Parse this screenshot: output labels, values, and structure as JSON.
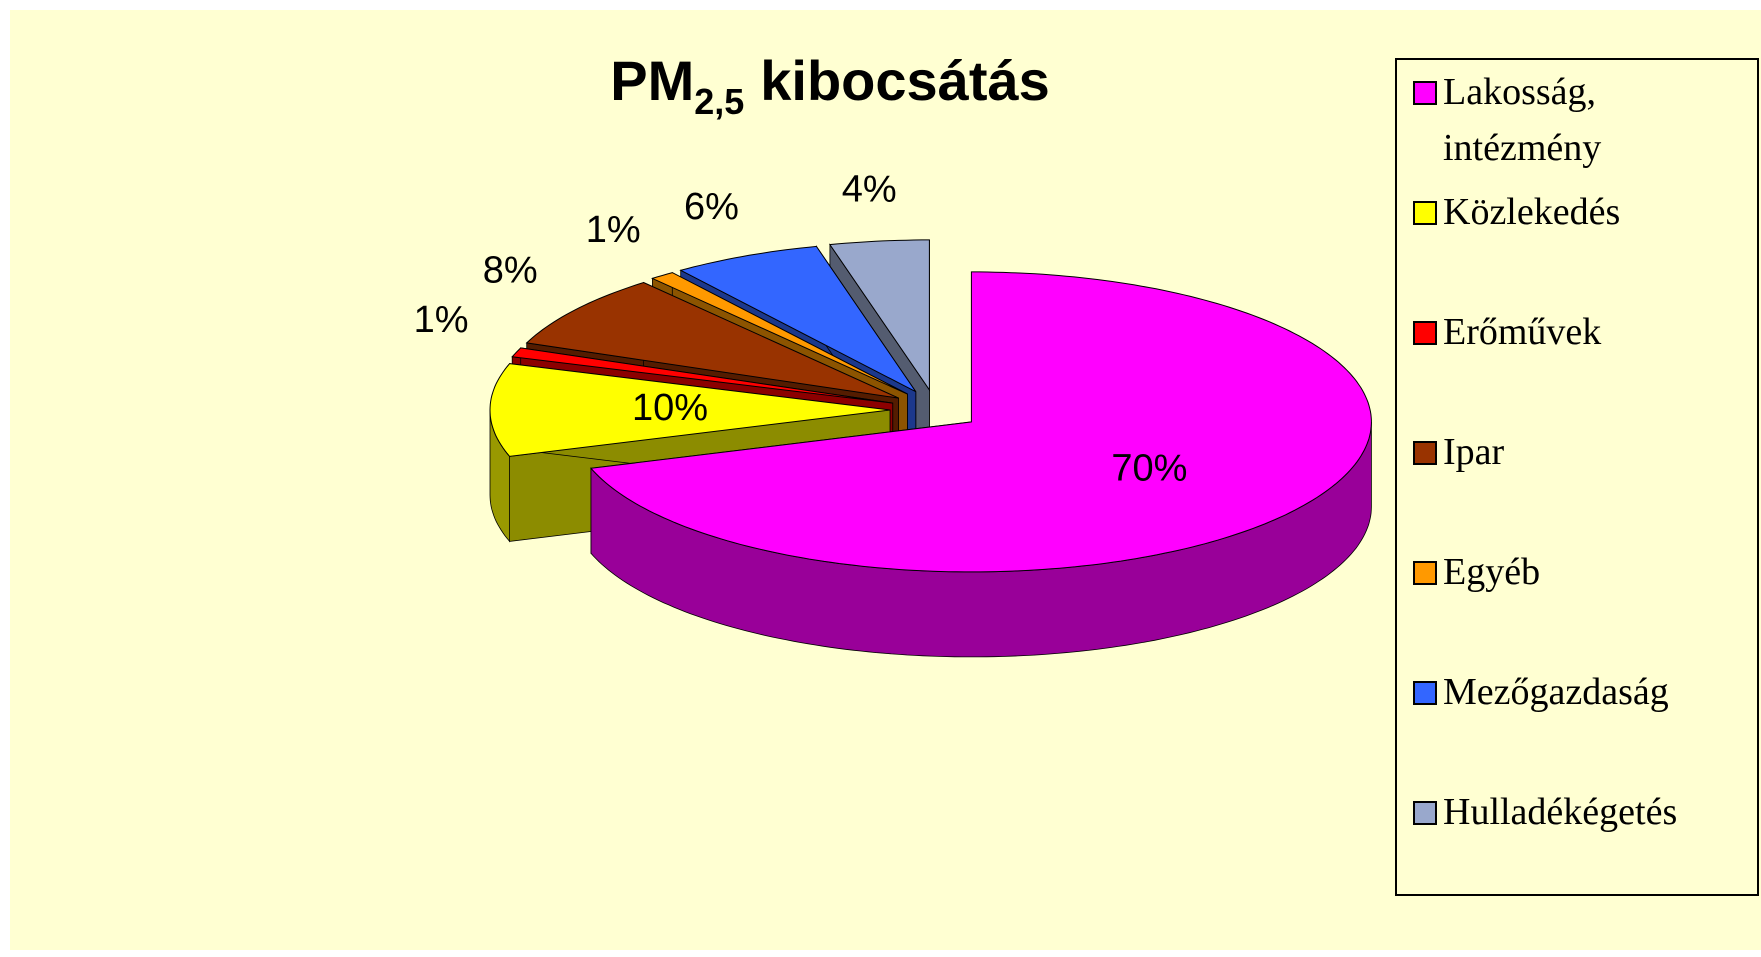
{
  "chart_data": {
    "type": "pie",
    "title": [
      "PM",
      "2,5",
      "kibocsátás"
    ],
    "categories": [
      "Lakosság, intézmény",
      "Közlekedés",
      "Erőművek",
      "Ipar",
      "Egyéb",
      "Mezőgazdaság",
      "Hulladékégetés"
    ],
    "values": [
      70,
      10,
      1,
      8,
      1,
      6,
      4
    ],
    "value_labels": [
      "70%",
      "10%",
      "1%",
      "8%",
      "1%",
      "6%",
      "4%"
    ],
    "colors": [
      "#ff00ff",
      "#ffff00",
      "#ff0000",
      "#993300",
      "#ff9900",
      "#3366ff",
      "#99a8cc"
    ],
    "legend": "right"
  }
}
